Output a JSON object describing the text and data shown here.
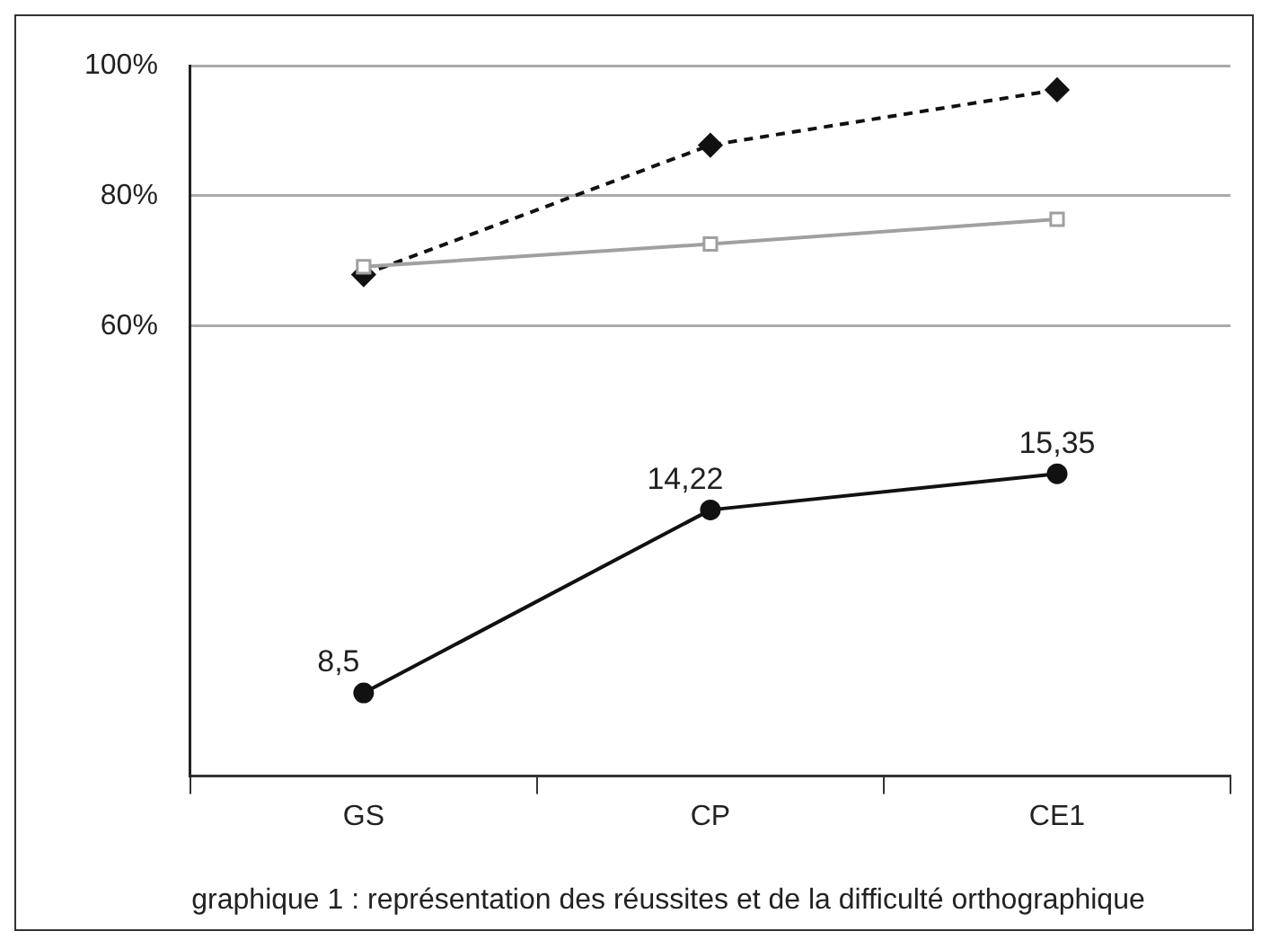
{
  "chart_data": {
    "type": "line",
    "categories": [
      "GS",
      "CP",
      "CE1"
    ],
    "series": [
      {
        "color": "#111111",
        "values": [
          67.9,
          87.8,
          96.3
        ],
        "marker": "diamond",
        "line_style": "dashed"
      },
      {
        "color": "#a0a0a0",
        "values": [
          69.1,
          72.6,
          76.4
        ],
        "marker": "square",
        "line_style": "solid"
      },
      {
        "color": "#111111",
        "values": [
          8.5,
          14.22,
          15.35
        ],
        "marker": "circle",
        "line_style": "solid",
        "axis": "y2",
        "data_labels": true,
        "value_labels": [
          "8,5",
          "14,22",
          "15,35"
        ]
      }
    ],
    "ylim": [
      -9.2,
      100
    ],
    "yticks": [
      {
        "value": 60,
        "label": "60%"
      },
      {
        "value": 80,
        "label": "80%"
      },
      {
        "value": 100,
        "label": "100%"
      }
    ],
    "y2lim": [
      5.9,
      28.1
    ],
    "grid": "y",
    "legend": false,
    "annotations": [
      "graphique 1 : représentation des réussites et de la difficulté orthographique"
    ]
  }
}
